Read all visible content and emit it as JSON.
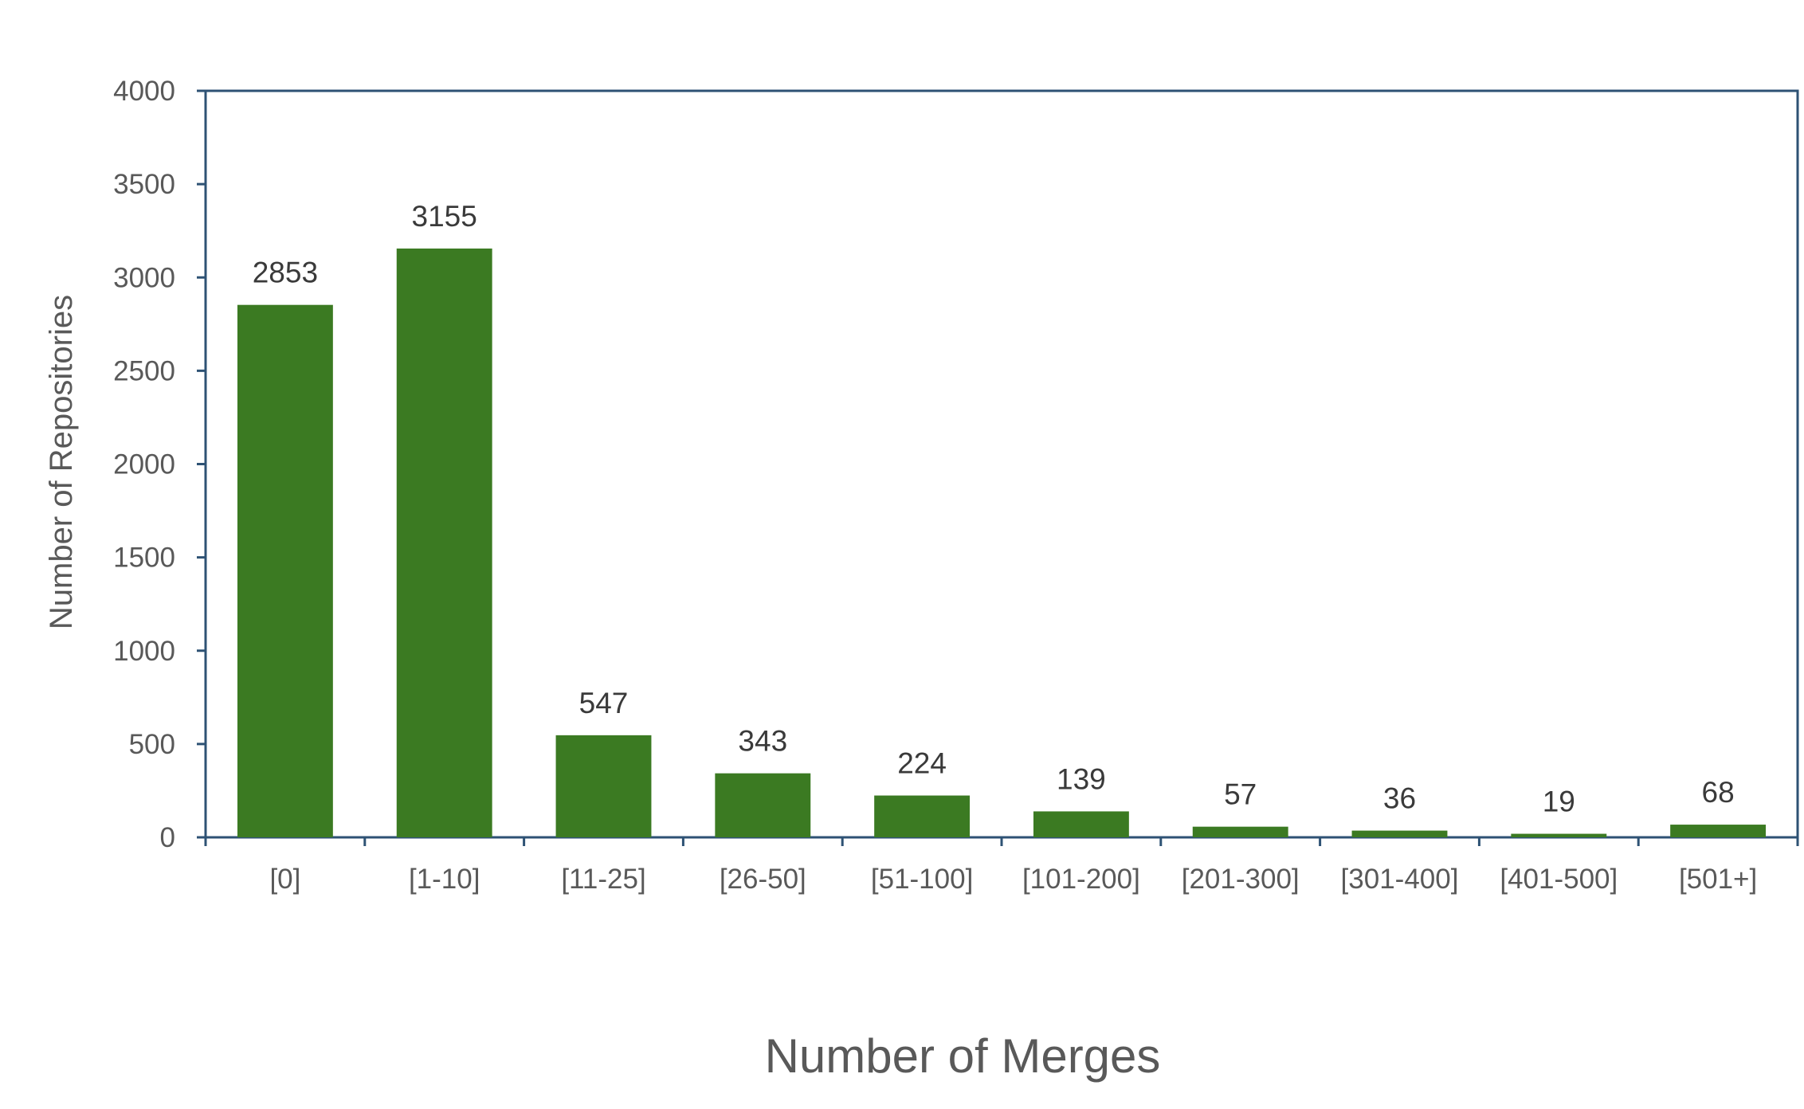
{
  "chart_data": {
    "type": "bar",
    "categories": [
      "[0]",
      "[1-10]",
      "[11-25]",
      "[26-50]",
      "[51-100]",
      "[101-200]",
      "[201-300]",
      "[301-400]",
      "[401-500]",
      "[501+]"
    ],
    "values": [
      2853,
      3155,
      547,
      343,
      224,
      139,
      57,
      36,
      19,
      68
    ],
    "data_labels": [
      "2853",
      "3155",
      "547",
      "343",
      "224",
      "139",
      "57",
      "36",
      "19",
      "68"
    ],
    "xlabel": "Number of Merges",
    "ylabel": "Number of Repositories",
    "ylim": [
      0,
      4000
    ],
    "yticks": [
      0,
      500,
      1000,
      1500,
      2000,
      2500,
      3000,
      3500,
      4000
    ],
    "ytick_labels": [
      "0",
      "500",
      "1000",
      "1500",
      "2000",
      "2500",
      "3000",
      "3500",
      "4000"
    ],
    "grid": false,
    "legend": "none",
    "colors": {
      "bar": "#3b7a22",
      "axis": "#2e5274",
      "tick_text": "#595959",
      "value_text": "#3a3a3a"
    }
  }
}
